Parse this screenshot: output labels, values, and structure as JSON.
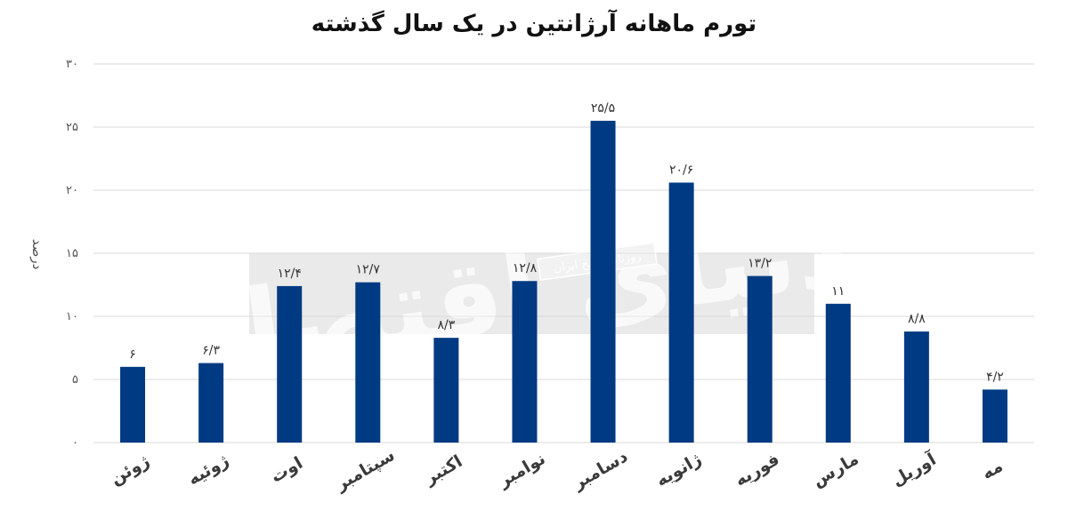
{
  "chart_data": {
    "type": "bar",
    "title": "تورم ماهانه آرژانتین در یک سال گذشته",
    "xlabel": "",
    "ylabel": "درصد",
    "ylim": [
      0,
      30
    ],
    "yticks": [
      "۰",
      "۵",
      "۱۰",
      "۱۵",
      "۲۰",
      "۲۵",
      "۳۰"
    ],
    "ytick_values": [
      0,
      5,
      10,
      15,
      20,
      25,
      30
    ],
    "grid": true,
    "bar_color": "#003A82",
    "categories": [
      "ژوئن",
      "ژوئیه",
      "اوت",
      "سپتامبر",
      "اکتبر",
      "نوامبر",
      "دسامبر",
      "ژانویه",
      "فوریه",
      "مارس",
      "آوریل",
      "مه"
    ],
    "values": [
      6,
      6.3,
      12.4,
      12.7,
      8.3,
      12.8,
      25.5,
      20.6,
      13.2,
      11,
      8.8,
      4.2
    ],
    "data_labels": [
      "۶",
      "۶/۳",
      "۱۲/۴",
      "۱۲/۷",
      "۸/۳",
      "۱۲/۸",
      "۲۵/۵",
      "۲۰/۶",
      "۱۳/۲",
      "۱۱",
      "۸/۸",
      "۴/۲"
    ]
  },
  "watermark": {
    "logo_text": "دنیای اقتصاد",
    "tagline": "روزنامه صبح ایران"
  }
}
